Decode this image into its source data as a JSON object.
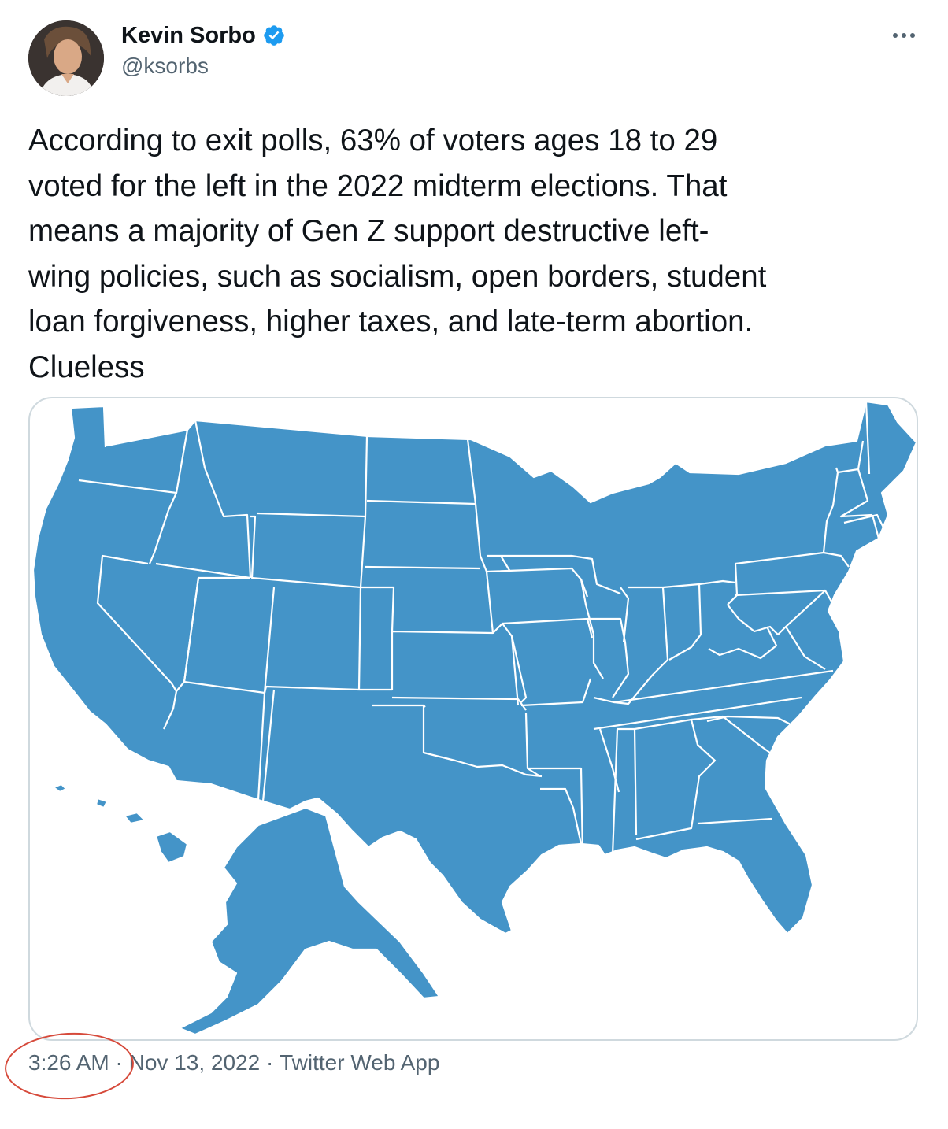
{
  "tweet": {
    "author": {
      "display_name": "Kevin Sorbo",
      "handle": "@ksorbs",
      "verified": true,
      "verified_icon": "verified-badge-icon",
      "avatar": "avatar-photo"
    },
    "more_icon": "ellipsis-icon",
    "text": "According to exit polls, 63% of voters ages 18 to 29\nvoted for the left in the 2022 midterm elections. That\nmeans a majority of Gen Z support destructive left-\nwing policies, such as socialism, open borders, student\nloan forgiveness, higher taxes, and late-term abortion.\nClueless",
    "media": {
      "type": "image",
      "description_icon": "us-states-map-image",
      "fill_color": "#4494c8",
      "border_color": "#ffffff"
    },
    "meta": {
      "time": "3:26 AM",
      "separator": " · ",
      "date": "Nov 13, 2022",
      "source": "Twitter Web App"
    },
    "annotation_color": "#d64a3b"
  }
}
